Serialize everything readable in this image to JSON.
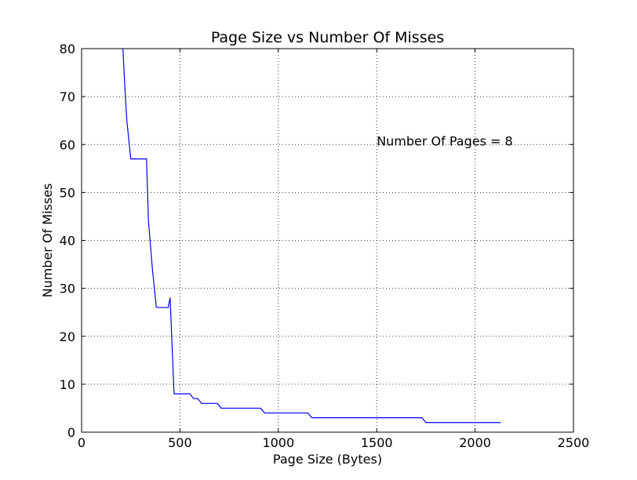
{
  "chart_data": {
    "type": "line",
    "title": "Page Size vs Number Of Misses",
    "xlabel": "Page Size (Bytes)",
    "ylabel": "Number Of Misses",
    "xlim": [
      0,
      2500
    ],
    "ylim": [
      0,
      80
    ],
    "xticks": [
      0,
      500,
      1000,
      1500,
      2000,
      2500
    ],
    "yticks": [
      0,
      10,
      20,
      30,
      40,
      50,
      60,
      70,
      80
    ],
    "xtick_labels": [
      "0",
      "500",
      "1000",
      "1500",
      "2000",
      "2500"
    ],
    "ytick_labels": [
      "0",
      "10",
      "20",
      "30",
      "40",
      "50",
      "60",
      "70",
      "80"
    ],
    "grid": true,
    "line_color": "#0000ff",
    "annotation": {
      "text": "Number Of Pages = 8",
      "x": 1500,
      "y": 60
    },
    "series": [
      {
        "x": [
          210,
          220,
          230,
          250,
          270,
          290,
          310,
          330,
          340,
          360,
          380,
          400,
          420,
          440,
          450,
          470,
          490,
          510,
          530,
          550,
          570,
          590,
          610,
          630,
          650,
          670,
          690,
          710,
          730,
          750,
          770,
          790,
          810,
          830,
          850,
          870,
          890,
          910,
          930,
          950,
          970,
          990,
          1010,
          1030,
          1050,
          1070,
          1090,
          1110,
          1130,
          1150,
          1170,
          1190,
          1210,
          1300,
          1400,
          1500,
          1600,
          1700,
          1730,
          1750,
          1800,
          1900,
          2000,
          2100,
          2130
        ],
        "y": [
          80,
          72,
          65,
          57,
          57,
          57,
          57,
          57,
          44,
          34,
          26,
          26,
          26,
          26,
          28,
          8,
          8,
          8,
          8,
          8,
          7,
          7,
          6,
          6,
          6,
          6,
          6,
          5,
          5,
          5,
          5,
          5,
          5,
          5,
          5,
          5,
          5,
          5,
          4,
          4,
          4,
          4,
          4,
          4,
          4,
          4,
          4,
          4,
          4,
          4,
          3,
          3,
          3,
          3,
          3,
          3,
          3,
          3,
          3,
          2,
          2,
          2,
          2,
          2,
          2
        ]
      }
    ]
  }
}
